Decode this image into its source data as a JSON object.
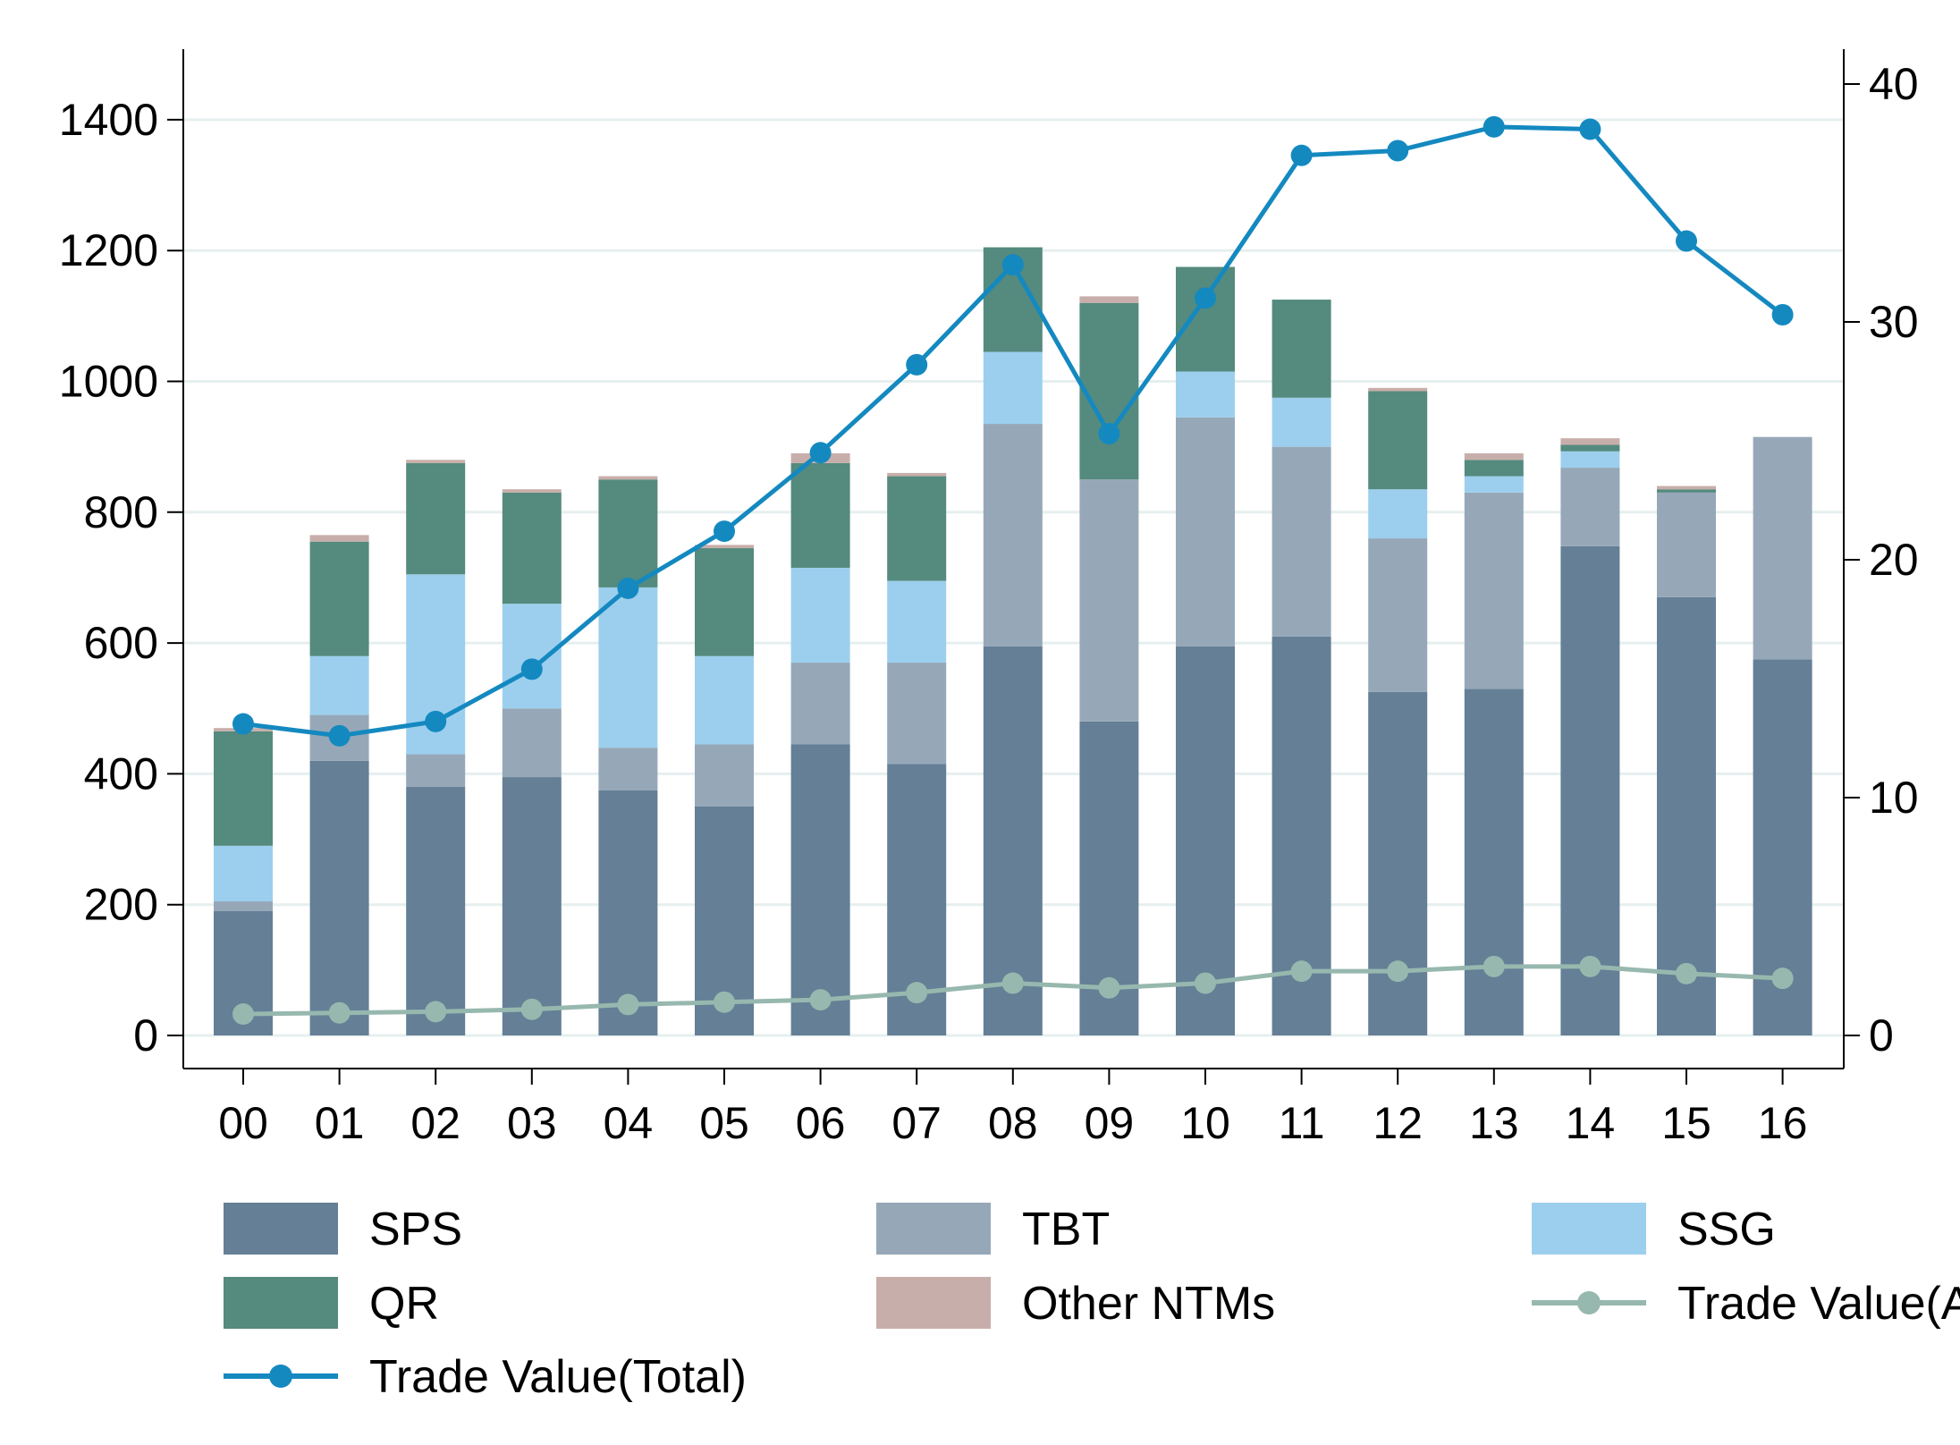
{
  "chart_data": {
    "type": "bar",
    "stacked": true,
    "categories": [
      "00",
      "01",
      "02",
      "03",
      "04",
      "05",
      "06",
      "07",
      "08",
      "09",
      "10",
      "11",
      "12",
      "13",
      "14",
      "15",
      "16"
    ],
    "left_axis": {
      "min": 0,
      "max": 1500,
      "ticks": [
        0,
        200,
        400,
        600,
        800,
        1000,
        1200,
        1400
      ]
    },
    "right_axis": {
      "min": -3.7,
      "max": 42.3,
      "ticks": [
        0,
        10,
        20,
        30,
        40
      ]
    },
    "bar_series": [
      {
        "name": "SPS",
        "color": "#647f96",
        "values": [
          190,
          420,
          380,
          395,
          375,
          350,
          445,
          415,
          595,
          480,
          595,
          610,
          525,
          530,
          748,
          670,
          575
        ]
      },
      {
        "name": "TBT",
        "color": "#96a8b8",
        "values": [
          15,
          70,
          50,
          105,
          65,
          95,
          125,
          155,
          340,
          370,
          350,
          290,
          235,
          300,
          120,
          160,
          340
        ]
      },
      {
        "name": "SSG",
        "color": "#9ccfee",
        "values": [
          85,
          90,
          275,
          160,
          245,
          135,
          145,
          125,
          110,
          0,
          70,
          75,
          75,
          25,
          25,
          0,
          0
        ]
      },
      {
        "name": "QR",
        "color": "#558a7e",
        "values": [
          175,
          175,
          170,
          170,
          165,
          165,
          160,
          160,
          160,
          270,
          160,
          150,
          150,
          25,
          10,
          5,
          0
        ]
      },
      {
        "name": "Other NTMs",
        "color": "#c8aeaa",
        "values": [
          5,
          10,
          5,
          5,
          5,
          5,
          15,
          5,
          0,
          10,
          0,
          0,
          5,
          10,
          10,
          5,
          0
        ]
      }
    ],
    "line_series": [
      {
        "name": "Trade Value(Agri.)",
        "color": "#97b8ae",
        "axis": "right",
        "values": [
          0.9,
          0.95,
          1.0,
          1.1,
          1.3,
          1.4,
          1.5,
          1.8,
          2.2,
          2.0,
          2.2,
          2.7,
          2.7,
          2.9,
          2.9,
          2.6,
          2.4
        ]
      },
      {
        "name": "Trade Value(Total)",
        "color": "#1489c0",
        "axis": "right",
        "values": [
          13.1,
          12.6,
          13.2,
          15.4,
          18.8,
          21.2,
          24.5,
          28.2,
          32.4,
          25.3,
          31.0,
          37.0,
          37.2,
          38.2,
          38.1,
          33.4,
          30.3
        ]
      }
    ],
    "legend": {
      "position": "bottom",
      "items": [
        {
          "label": "SPS",
          "kind": "box",
          "color": "#647f96"
        },
        {
          "label": "TBT",
          "kind": "box",
          "color": "#96a8b8"
        },
        {
          "label": "SSG",
          "kind": "box",
          "color": "#9ccfee"
        },
        {
          "label": "QR",
          "kind": "box",
          "color": "#558a7e"
        },
        {
          "label": "Other NTMs",
          "kind": "box",
          "color": "#c8aeaa"
        },
        {
          "label": "Trade Value(Agri.)",
          "kind": "line",
          "color": "#97b8ae"
        },
        {
          "label": "Trade Value(Total)",
          "kind": "line",
          "color": "#1489c0"
        }
      ]
    },
    "gridlines": true,
    "gridline_color": "#e6efef",
    "title": "",
    "xlabel": "",
    "ylabel": "",
    "ylabel_right": ""
  }
}
